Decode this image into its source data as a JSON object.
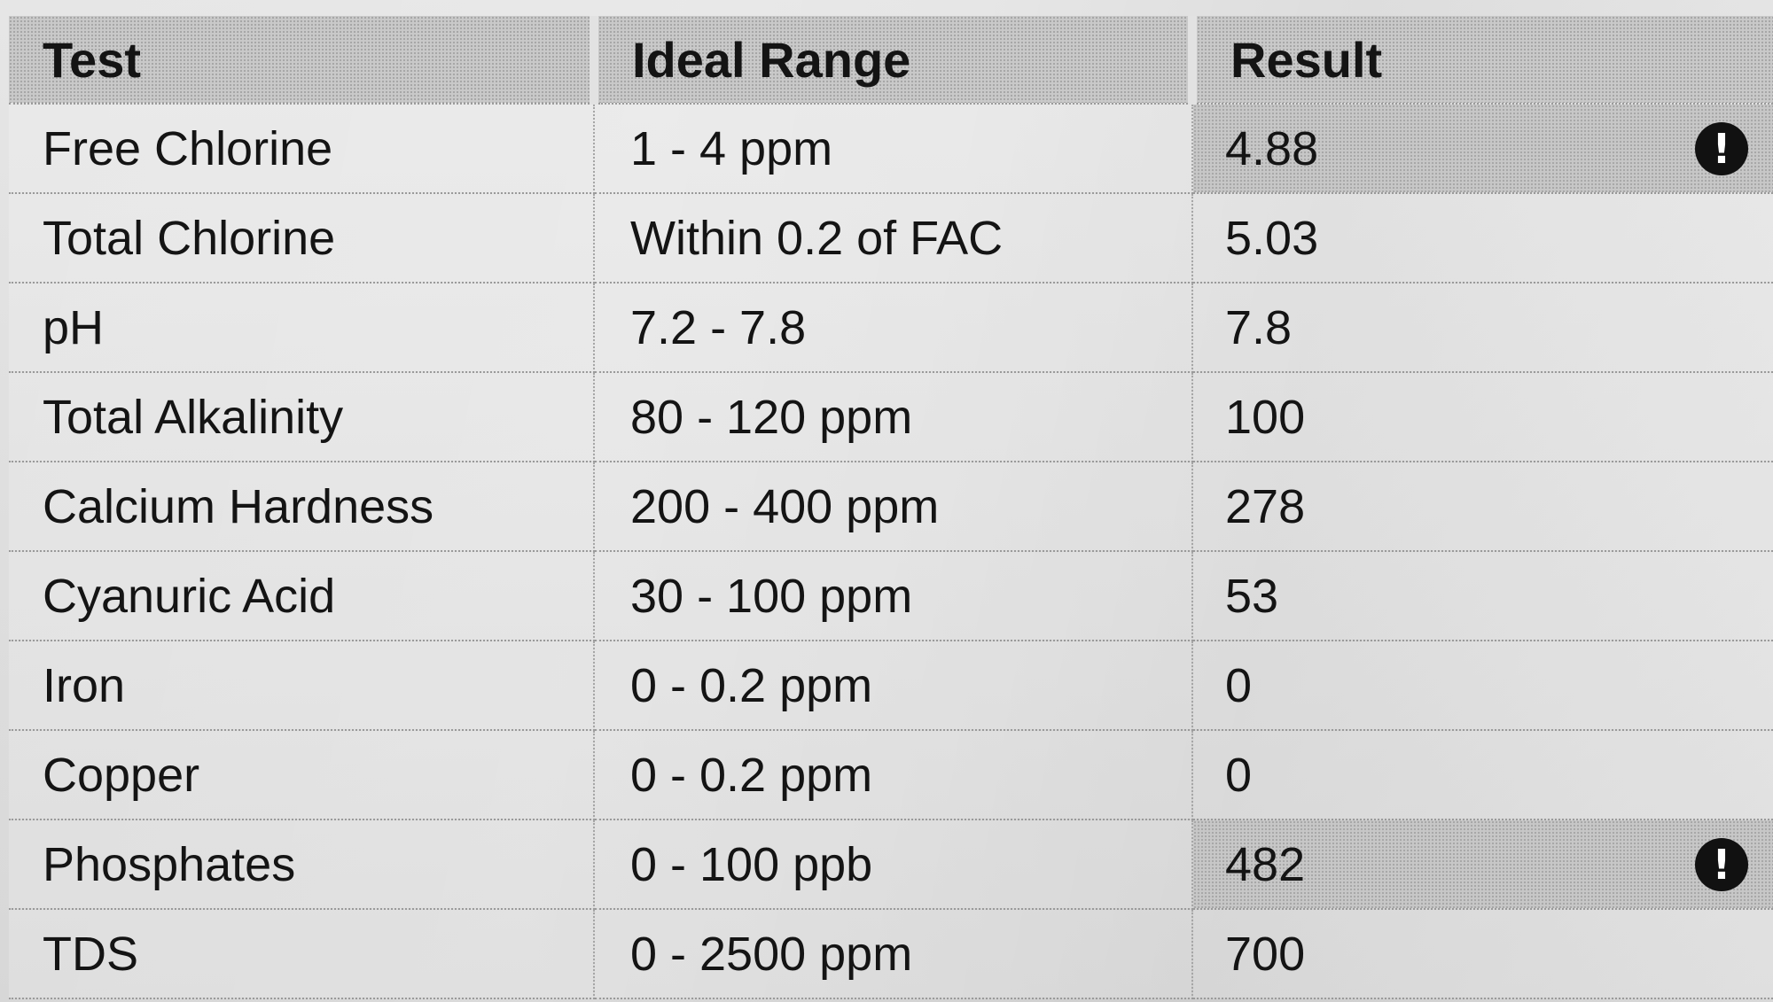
{
  "table": {
    "headers": {
      "test": "Test",
      "range": "Ideal Range",
      "result": "Result"
    },
    "rows": [
      {
        "test": "Free Chlorine",
        "range": "1 - 4 ppm",
        "result": "4.88",
        "flagged": true
      },
      {
        "test": "Total Chlorine",
        "range": "Within 0.2 of FAC",
        "result": "5.03",
        "flagged": false
      },
      {
        "test": "pH",
        "range": "7.2 - 7.8",
        "result": "7.8",
        "flagged": false
      },
      {
        "test": "Total Alkalinity",
        "range": "80 - 120 ppm",
        "result": "100",
        "flagged": false
      },
      {
        "test": "Calcium Hardness",
        "range": "200 - 400 ppm",
        "result": "278",
        "flagged": false
      },
      {
        "test": "Cyanuric Acid",
        "range": "30 - 100 ppm",
        "result": "53",
        "flagged": false
      },
      {
        "test": "Iron",
        "range": "0 - 0.2 ppm",
        "result": "0",
        "flagged": false
      },
      {
        "test": "Copper",
        "range": "0 - 0.2 ppm",
        "result": "0",
        "flagged": false
      },
      {
        "test": "Phosphates",
        "range": "0 - 100 ppb",
        "result": "482",
        "flagged": true
      },
      {
        "test": "TDS",
        "range": "0 - 2500 ppm",
        "result": "700",
        "flagged": false
      }
    ]
  },
  "icons": {
    "alert": "exclamation-circle-icon",
    "alert_glyph": "!"
  }
}
